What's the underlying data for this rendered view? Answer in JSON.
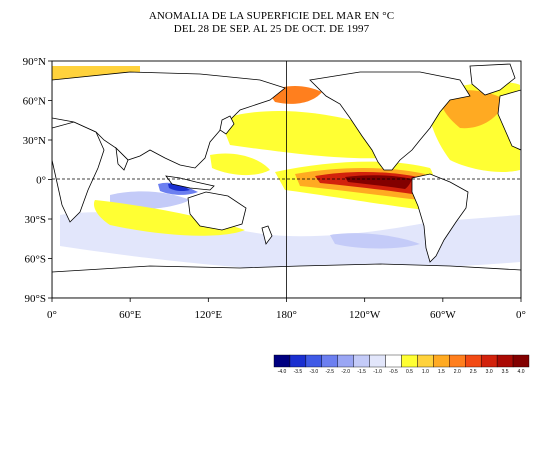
{
  "title": {
    "line1": "ANOMALIA DE LA SUPERFICIE DEL MAR EN °C",
    "line2": "DEL 28 DE SEP. AL 25 DE OCT. DE 1997"
  },
  "map": {
    "projection": "cylindrical, centered on 180°",
    "lat_labels": [
      "90°N",
      "60°N",
      "30°N",
      "0°",
      "30°S",
      "60°S",
      "90°S"
    ],
    "lon_labels": [
      "0°",
      "60°E",
      "120°E",
      "180°",
      "120°W",
      "60°W",
      "0°"
    ],
    "equator_line": "dashed",
    "dateline_line": "solid"
  },
  "colorbar": {
    "tick_labels": [
      "-4.0",
      "-3.5",
      "-3.0",
      "-2.5",
      "-2.0",
      "-1.5",
      "-1.0",
      "-0.5",
      "0.5",
      "1.0",
      "1.5",
      "2.0",
      "2.5",
      "3.0",
      "3.5",
      "4.0"
    ],
    "colors": [
      "#000080",
      "#1a2fd0",
      "#3f5ae6",
      "#6c7ff0",
      "#9aa6f4",
      "#c4cbf8",
      "#e2e6fb",
      "#ffffff",
      "#ffff33",
      "#ffd23c",
      "#ffaa22",
      "#ff7f1e",
      "#f24a14",
      "#d2220c",
      "#aa0a04",
      "#820000"
    ]
  }
}
